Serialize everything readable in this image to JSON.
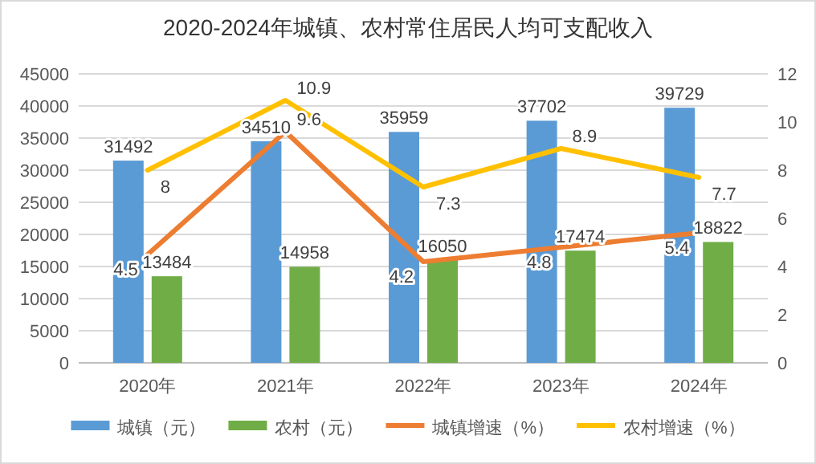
{
  "chart_data": {
    "type": "bar",
    "title": "2020-2024年城镇、农村常住居民人均可支配收入",
    "categories": [
      "2020年",
      "2021年",
      "2022年",
      "2023年",
      "2024年"
    ],
    "series": [
      {
        "name": "城镇（元）",
        "color": "#5b9bd5",
        "values": [
          31492,
          34510,
          35959,
          37702,
          39729
        ]
      },
      {
        "name": "农村（元）",
        "color": "#70ad47",
        "values": [
          13484,
          14958,
          16050,
          17474,
          18822
        ]
      },
      {
        "name": "城镇增速（%）",
        "type": "line",
        "axis": "y2",
        "color": "#ed7d31",
        "values": [
          4.5,
          9.6,
          4.2,
          4.8,
          5.4
        ]
      },
      {
        "name": "农村增速（%）",
        "type": "line",
        "axis": "y2",
        "color": "#ffc000",
        "values": [
          8,
          10.9,
          7.3,
          8.9,
          7.7
        ]
      }
    ],
    "ylim": [
      0,
      45000
    ],
    "yticks": [
      0,
      5000,
      10000,
      15000,
      20000,
      25000,
      30000,
      35000,
      40000,
      45000
    ],
    "y2lim": [
      0,
      12
    ],
    "y2ticks": [
      0,
      2,
      4,
      6,
      8,
      10,
      12
    ],
    "grid": "y",
    "legend": "bottom",
    "data_labels": true
  }
}
